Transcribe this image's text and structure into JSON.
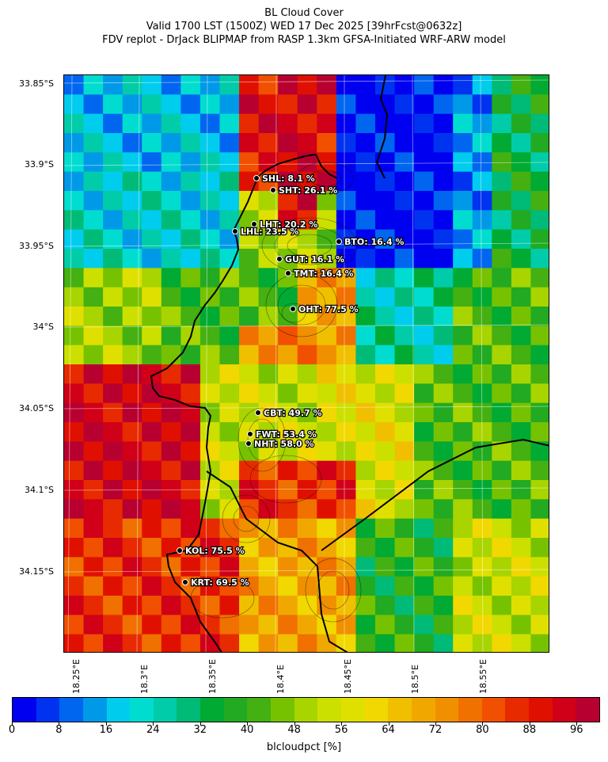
{
  "header": {
    "title": "BL Cloud Cover",
    "subtitle1": "Valid 1700 LST (1500Z) WED 17 Dec 2025 [39hrFcst@0632z]",
    "subtitle2": "FDV replot - DrJack BLIPMAP from RASP 1.3km GFSA-Initiated WRF-ARW model"
  },
  "map": {
    "lat_labels": [
      "33.85°S",
      "33.9°S",
      "33.95°S",
      "34°S",
      "34.05°S",
      "34.1°S",
      "34.15°S"
    ],
    "lon_labels": [
      "18.25°E",
      "18.3°E",
      "18.35°E",
      "18.4°E",
      "18.45°E",
      "18.5°E",
      "18.55°E"
    ],
    "stations": [
      {
        "id": "SHL",
        "label": "SHL: 8.1 %"
      },
      {
        "id": "SHT",
        "label": "SHT: 26.1 %"
      },
      {
        "id": "LHT",
        "label": "LHT: 20.2 %"
      },
      {
        "id": "LHL",
        "label": "LHL: 23.5 %"
      },
      {
        "id": "BTO",
        "label": "BTO: 16.4 %"
      },
      {
        "id": "GUT",
        "label": "GUT: 16.1 %"
      },
      {
        "id": "TMT",
        "label": "TMT: 16.4 %"
      },
      {
        "id": "OHT",
        "label": "OHT: 77.5 %"
      },
      {
        "id": "CBT",
        "label": "CBT: 49.7 %"
      },
      {
        "id": "FWT",
        "label": "FWT: 53.4 %"
      },
      {
        "id": "NHT",
        "label": "NHT: 58.0 %"
      },
      {
        "id": "KOL",
        "label": "KOL: 75.5 %"
      },
      {
        "id": "KRT",
        "label": "KRT: 69.5 %"
      }
    ]
  },
  "colorbar": {
    "label": "blcloudpct [%]",
    "ticks": [
      "0",
      "8",
      "16",
      "24",
      "32",
      "40",
      "48",
      "56",
      "64",
      "72",
      "80",
      "88",
      "96"
    ],
    "colors": [
      "#0000f0",
      "#0033f0",
      "#0066f0",
      "#0099e8",
      "#00ccee",
      "#00ddd0",
      "#00ccaa",
      "#00bb77",
      "#00aa33",
      "#22aa22",
      "#44b011",
      "#77c200",
      "#a8d400",
      "#cce000",
      "#e0e000",
      "#f0d800",
      "#f0c000",
      "#f0a800",
      "#f09000",
      "#f07000",
      "#f05000",
      "#e82a00",
      "#e01000",
      "#d00018",
      "#b80030"
    ]
  }
}
